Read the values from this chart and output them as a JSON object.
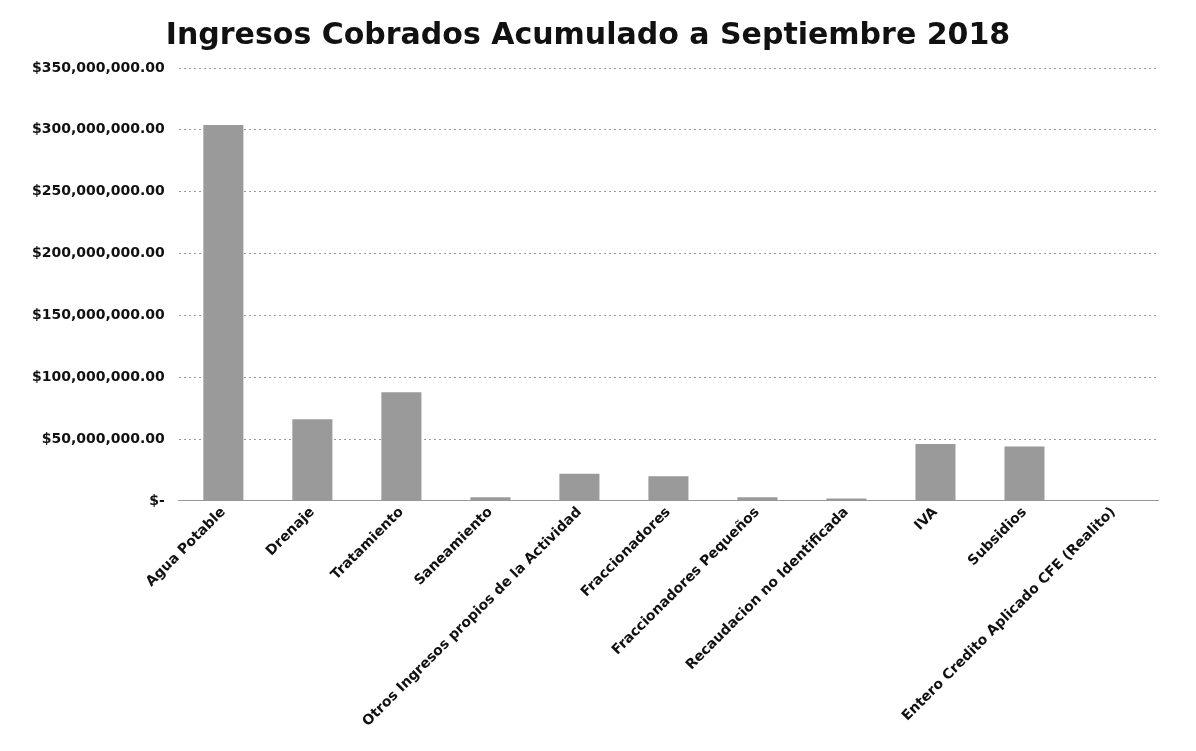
{
  "chart_data": {
    "type": "bar",
    "title": "Ingresos Cobrados Acumulado a Septiembre 2018",
    "categories": [
      "Agua Potable",
      "Drenaje",
      "Tratamiento",
      "Saneamiento",
      "Otros Ingresos propios de la Actividad",
      "Fraccionadores",
      "Fraccionadores Pequeños",
      "Recaudacion no Identificada",
      "IVA",
      "Subsidios",
      "Entero Credito Aplicado CFE (Realito)"
    ],
    "values": [
      304000000,
      66000000,
      88000000,
      3000000,
      22000000,
      20000000,
      3000000,
      2000000,
      46000000,
      44000000,
      null
    ],
    "color": "#9a9a9a",
    "ylim": [
      0,
      350000000
    ],
    "yticks": [
      {
        "value": 0,
        "label": "$-"
      },
      {
        "value": 50000000,
        "label": "$50,000,000.00"
      },
      {
        "value": 100000000,
        "label": "$100,000,000.00"
      },
      {
        "value": 150000000,
        "label": "$150,000,000.00"
      },
      {
        "value": 200000000,
        "label": "$200,000,000.00"
      },
      {
        "value": 250000000,
        "label": "$250,000,000.00"
      },
      {
        "value": 300000000,
        "label": "$300,000,000.00"
      },
      {
        "value": 350000000,
        "label": "$350,000,000.00"
      }
    ],
    "grid": "y"
  }
}
